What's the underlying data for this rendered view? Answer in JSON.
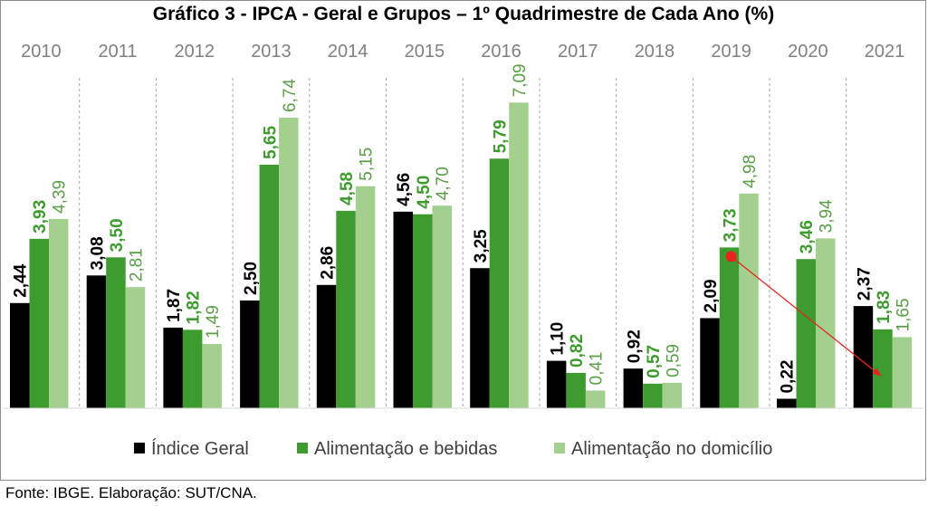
{
  "colors": {
    "indice_geral": "#000000",
    "alimentacao_bebidas": "#3e9b2e",
    "alimentacao_domicilio": "#a4d08f",
    "label_green": "#3e9b2e",
    "label_light": "#5a9e45",
    "arrow": "#e8231e",
    "year_label": "#808080",
    "divider": "#a6a6a6"
  },
  "chart_data": {
    "type": "bar",
    "title": "Gráfico 3 - IPCA - Geral e Grupos – 1º Quadrimestre de Cada Ano (%)",
    "categories": [
      "2010",
      "2011",
      "2012",
      "2013",
      "2014",
      "2015",
      "2016",
      "2017",
      "2018",
      "2019",
      "2020",
      "2021"
    ],
    "series": [
      {
        "name": "Índice Geral",
        "values": [
          2.44,
          3.08,
          1.87,
          2.5,
          2.86,
          4.56,
          3.25,
          1.1,
          0.92,
          2.09,
          0.22,
          2.37
        ],
        "labels": [
          "2,44",
          "3,08",
          "1,87",
          "2,50",
          "2,86",
          "4,56",
          "3,25",
          "1,10",
          "0,92",
          "2,09",
          "0,22",
          "2,37"
        ]
      },
      {
        "name": "Alimentação e bebidas",
        "values": [
          3.93,
          3.5,
          1.82,
          5.65,
          4.58,
          4.5,
          5.79,
          0.82,
          0.57,
          3.73,
          3.46,
          1.83
        ],
        "labels": [
          "3,93",
          "3,50",
          "1,82",
          "5,65",
          "4,58",
          "4,50",
          "5,79",
          "0,82",
          "0,57",
          "3,73",
          "3,46",
          "1,83"
        ]
      },
      {
        "name": "Alimentação no domicílio",
        "values": [
          4.39,
          2.81,
          1.49,
          6.74,
          5.15,
          4.7,
          7.09,
          0.41,
          0.59,
          4.98,
          3.94,
          1.65
        ],
        "labels": [
          "4,39",
          "2,81",
          "1,49",
          "6,74",
          "5,15",
          "4,70",
          "7,09",
          "0,41",
          "0,59",
          "4,98",
          "3,94",
          "1,65"
        ]
      }
    ],
    "ylim": [
      0,
      8
    ],
    "legend": "bottom",
    "grid": false,
    "annotations": [
      {
        "type": "arrow",
        "from": {
          "category": "2019",
          "series": "Alimentação e bebidas",
          "value": 3.73
        },
        "to": {
          "category": "2021",
          "series": "Alimentação e bebidas",
          "value": 1.83
        }
      }
    ]
  },
  "source": "Fonte: IBGE. Elaboração: SUT/CNA."
}
